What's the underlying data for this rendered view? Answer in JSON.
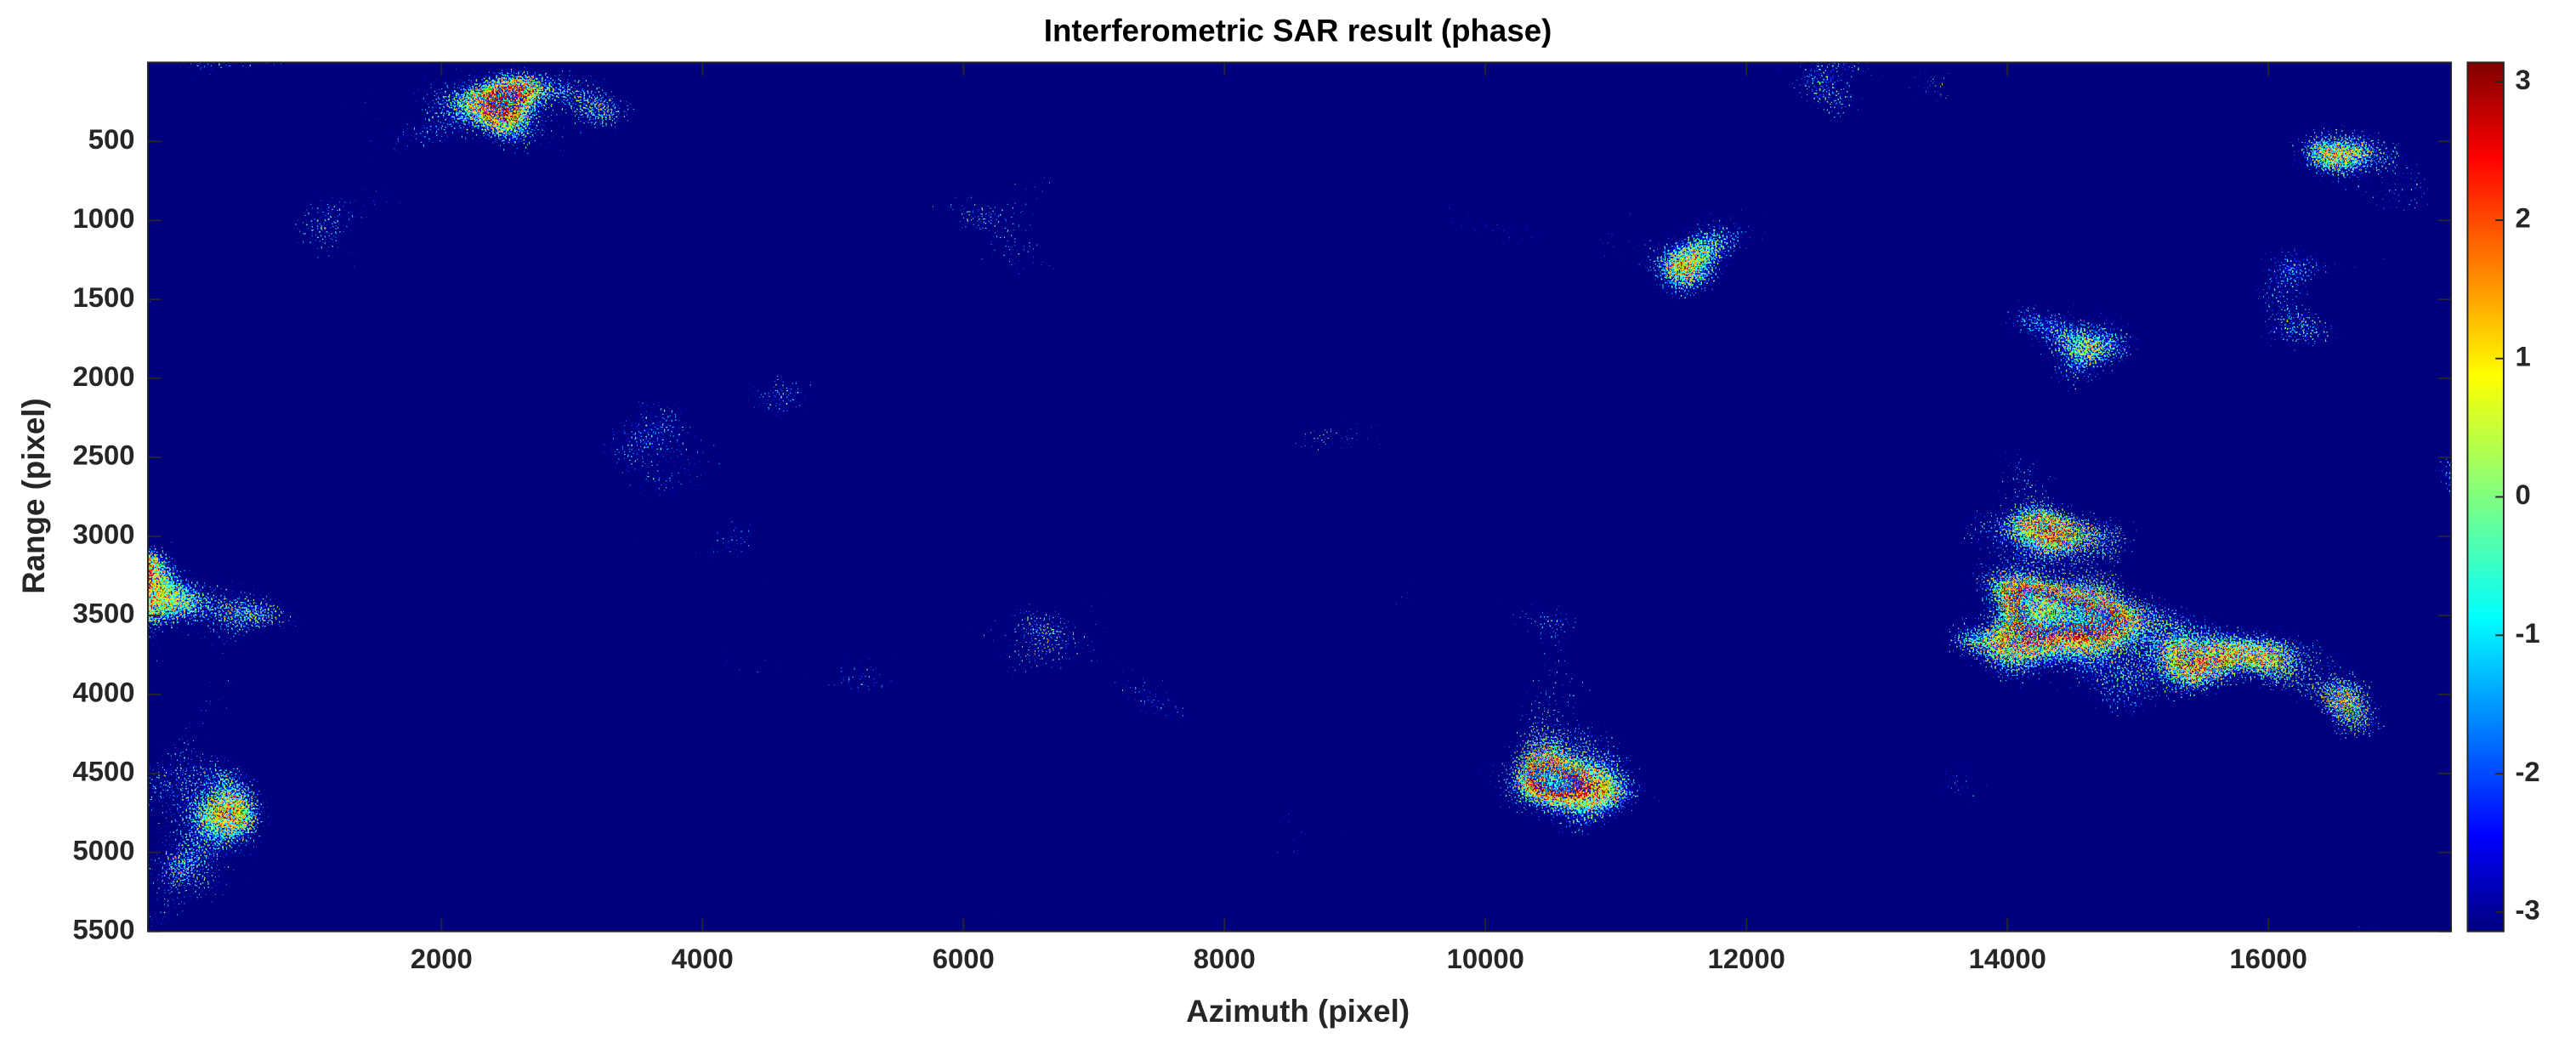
{
  "chart_data": {
    "type": "image",
    "title": "Interferometric SAR result (phase)",
    "xlabel": "Azimuth (pixel)",
    "ylabel": "Range (pixel)",
    "xlim": [
      -250,
      17400
    ],
    "xticks": [
      2000,
      4000,
      6000,
      8000,
      10000,
      12000,
      14000,
      16000
    ],
    "ylim": [
      0,
      5500
    ],
    "y_reversed": true,
    "yticks": [
      500,
      1000,
      1500,
      2000,
      2500,
      3000,
      3500,
      4000,
      4500,
      5000,
      5500
    ],
    "colorbar": {
      "colormap": "jet",
      "clim": [
        -3.14,
        3.14
      ],
      "ticks": [
        -3,
        -2,
        -1,
        0,
        1,
        2,
        3
      ]
    }
  }
}
